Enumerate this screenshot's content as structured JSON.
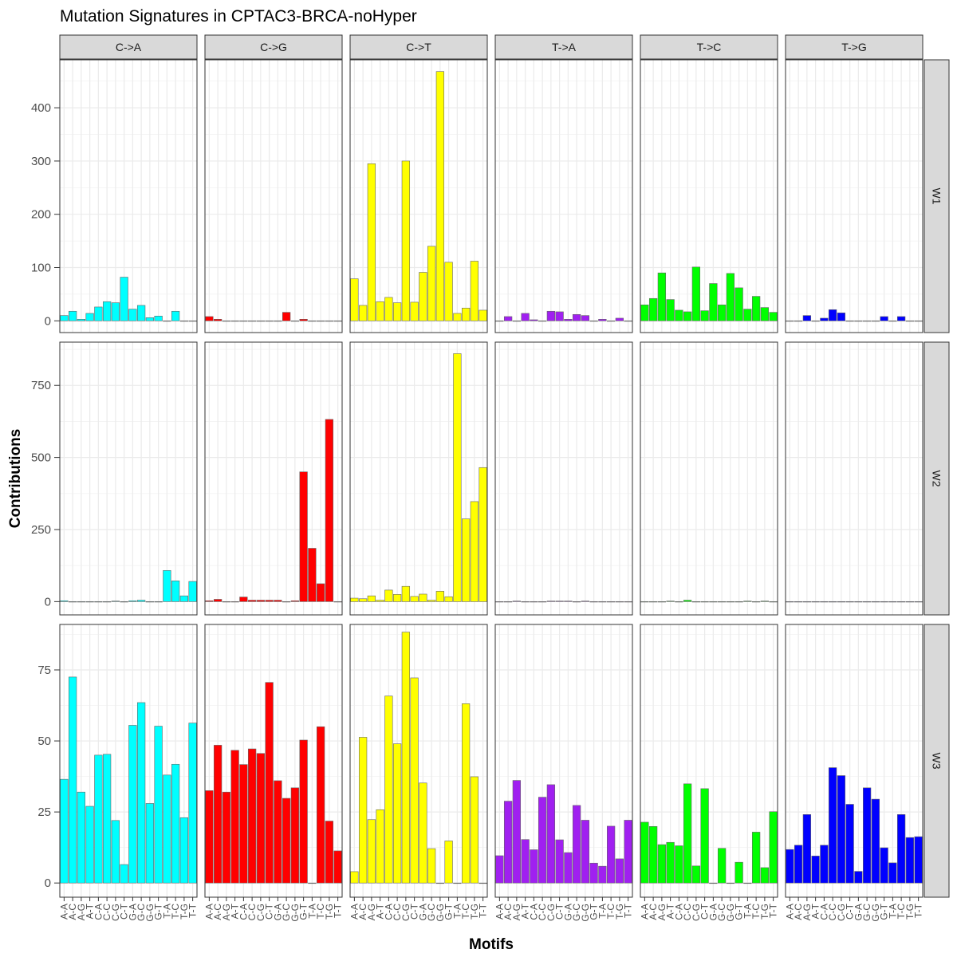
{
  "chart_data": {
    "type": "bar",
    "title": "Mutation Signatures in CPTAC3-BRCA-noHyper",
    "xlabel": "Motifs",
    "ylabel": "Contributions",
    "categories": [
      "A-A",
      "A-C",
      "A-G",
      "A-T",
      "C-A",
      "C-C",
      "C-G",
      "C-T",
      "G-A",
      "G-C",
      "G-G",
      "G-T",
      "T-A",
      "T-C",
      "T-G",
      "T-T"
    ],
    "mutation_types": [
      "C->A",
      "C->G",
      "C->T",
      "T->A",
      "T->C",
      "T->G"
    ],
    "signatures": [
      "W1",
      "W2",
      "W3"
    ],
    "colors": {
      "C->A": "#00FFFF",
      "C->G": "#FF0000",
      "C->T": "#FFFF00",
      "T->A": "#A020F0",
      "T->C": "#00FF00",
      "T->G": "#0000FF"
    },
    "panel_ticks": {
      "W1": [
        0,
        100,
        200,
        300,
        400
      ],
      "W2": [
        0,
        250,
        500,
        750
      ],
      "W3": [
        0,
        25,
        50,
        75
      ]
    },
    "panel_ylim": {
      "W1": [
        -22,
        490
      ],
      "W2": [
        -46,
        900
      ],
      "W3": [
        -5,
        91
      ]
    },
    "values": {
      "W1": {
        "C->A": [
          10,
          18,
          3,
          14,
          26,
          36,
          34,
          82,
          22,
          29,
          6,
          9,
          0,
          18,
          0,
          0
        ],
        "C->G": [
          8,
          3,
          0,
          0,
          0,
          0,
          0,
          0,
          0,
          16,
          0,
          3,
          0,
          0,
          0,
          0
        ],
        "C->T": [
          79,
          29,
          295,
          36,
          44,
          34,
          300,
          35,
          91,
          140,
          468,
          110,
          14,
          24,
          112,
          20
        ],
        "T->A": [
          0,
          8,
          0,
          14,
          2,
          0,
          18,
          17,
          3,
          12,
          10,
          0,
          3,
          0,
          5,
          0
        ],
        "T->C": [
          30,
          42,
          90,
          40,
          20,
          17,
          101,
          19,
          70,
          30,
          89,
          62,
          22,
          46,
          25,
          16
        ],
        "T->G": [
          0,
          0,
          10,
          0,
          5,
          21,
          15,
          0,
          0,
          0,
          0,
          8,
          0,
          8,
          0,
          0
        ]
      },
      "W2": {
        "C->A": [
          3,
          0,
          0,
          0,
          0,
          0,
          2,
          0,
          3,
          5,
          0,
          0,
          108,
          72,
          20,
          70
        ],
        "C->G": [
          3,
          8,
          0,
          0,
          16,
          5,
          5,
          5,
          5,
          0,
          3,
          450,
          185,
          62,
          632,
          0
        ],
        "C->T": [
          12,
          10,
          20,
          5,
          40,
          25,
          53,
          18,
          26,
          5,
          36,
          17,
          860,
          287,
          347,
          465
        ],
        "T->A": [
          0,
          0,
          2,
          0,
          0,
          0,
          2,
          2,
          2,
          0,
          2,
          0,
          0,
          0,
          0,
          0
        ],
        "T->C": [
          0,
          0,
          0,
          2,
          0,
          5,
          0,
          0,
          0,
          0,
          0,
          0,
          2,
          0,
          2,
          0
        ],
        "T->G": [
          0,
          0,
          0,
          0,
          0,
          0,
          0,
          0,
          0,
          0,
          0,
          0,
          0,
          0,
          0,
          0
        ]
      },
      "W3": {
        "C->A": [
          36.5,
          72.5,
          32,
          27,
          45,
          45.3,
          22,
          6.5,
          55.5,
          63.5,
          28,
          55.2,
          38,
          41.8,
          23,
          56.3
        ],
        "C->G": [
          32.5,
          48.5,
          32,
          46.7,
          41.7,
          47.2,
          45.6,
          70.6,
          36,
          29.8,
          33.5,
          50.3,
          0,
          55,
          21.8,
          11.3
        ],
        "C->T": [
          4,
          51.3,
          22.3,
          25.8,
          65.8,
          49,
          88.3,
          72.2,
          35.2,
          12.1,
          0,
          14.8,
          0,
          63.1,
          37.4,
          0
        ],
        "T->A": [
          9.6,
          28.8,
          36.1,
          15.3,
          11.7,
          30.2,
          34.6,
          15.2,
          10.7,
          27.3,
          22.1,
          7,
          5.9,
          20,
          8.5,
          22.1
        ],
        "T->C": [
          21.4,
          19.9,
          13.5,
          14.3,
          13.1,
          34.9,
          6,
          33.2,
          0,
          12.2,
          0,
          7.3,
          0,
          17.9,
          5.4,
          25.1
        ],
        "T->G": [
          11.8,
          13.3,
          24.1,
          9.5,
          13.3,
          40.6,
          37.8,
          27.7,
          4.1,
          33.5,
          29.5,
          12.4,
          7.1,
          24.1,
          16,
          16.3
        ]
      }
    },
    "grid": true,
    "legend": "none"
  }
}
